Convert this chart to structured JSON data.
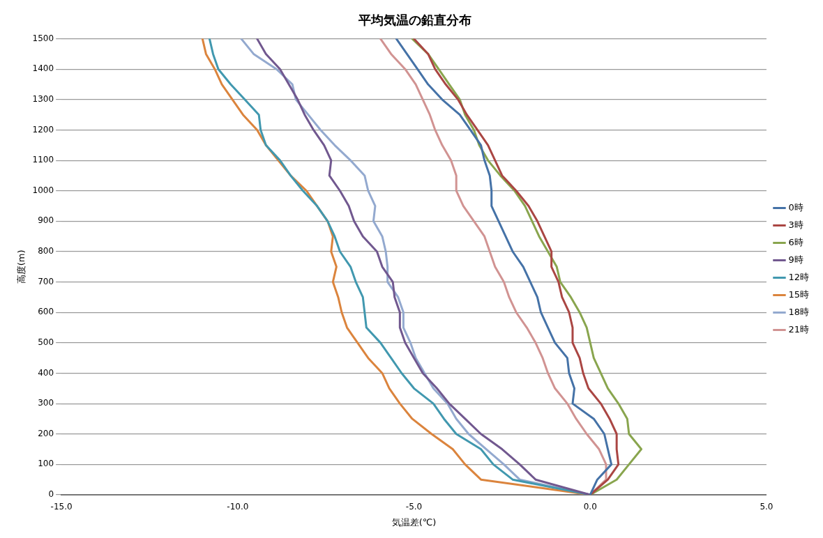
{
  "chart_data": {
    "type": "line",
    "title": "平均気温の鉛直分布",
    "xlabel": "気温差(℃)",
    "ylabel": "高度(m)",
    "xlim": [
      -15,
      5
    ],
    "xticks": [
      {
        "value": -15,
        "label": "-15.0"
      },
      {
        "value": -10,
        "label": "-10.0"
      },
      {
        "value": -5,
        "label": "-5.0"
      },
      {
        "value": 0,
        "label": "0.0"
      },
      {
        "value": 5,
        "label": "5.0"
      }
    ],
    "ylim": [
      0,
      1500
    ],
    "yticks": [
      0,
      100,
      200,
      300,
      400,
      500,
      600,
      700,
      800,
      900,
      1000,
      1100,
      1200,
      1300,
      1400,
      1500
    ],
    "grid": "y",
    "legend": "right",
    "marker": "none",
    "series": [
      {
        "name": "0時",
        "color": "#4572a7",
        "x": [
          0,
          0.2,
          0.6,
          0.5,
          0.4,
          0.1,
          -0.5,
          -0.45,
          -0.6,
          -0.65,
          -1.0,
          -1.2,
          -1.4,
          -1.5,
          -1.7,
          -1.9,
          -2.2,
          -2.4,
          -2.6,
          -2.8,
          -2.8,
          -2.85,
          -3.0,
          -3.1,
          -3.4,
          -3.7,
          -4.2,
          -4.6,
          -4.9,
          -5.2,
          -5.5
        ],
        "values": [
          0,
          50,
          100,
          150,
          200,
          250,
          300,
          350,
          400,
          450,
          500,
          550,
          600,
          650,
          700,
          750,
          800,
          850,
          900,
          950,
          1000,
          1050,
          1100,
          1150,
          1200,
          1250,
          1300,
          1350,
          1400,
          1450,
          1500
        ]
      },
      {
        "name": "3時",
        "color": "#aa4643",
        "x": [
          0,
          0.5,
          0.8,
          0.75,
          0.75,
          0.55,
          0.3,
          -0.05,
          -0.2,
          -0.3,
          -0.5,
          -0.5,
          -0.6,
          -0.8,
          -0.9,
          -1.1,
          -1.1,
          -1.3,
          -1.5,
          -1.75,
          -2.1,
          -2.5,
          -2.7,
          -2.9,
          -3.2,
          -3.5,
          -3.75,
          -4.1,
          -4.4,
          -4.6,
          -5.0
        ],
        "values": [
          0,
          50,
          100,
          150,
          200,
          250,
          300,
          350,
          400,
          450,
          500,
          550,
          600,
          650,
          700,
          750,
          800,
          850,
          900,
          950,
          1000,
          1050,
          1100,
          1150,
          1200,
          1250,
          1300,
          1350,
          1400,
          1450,
          1500
        ]
      },
      {
        "name": "6時",
        "color": "#89a54e",
        "x": [
          0,
          0.75,
          1.1,
          1.45,
          1.1,
          1.05,
          0.8,
          0.5,
          0.3,
          0.1,
          0.0,
          -0.1,
          -0.3,
          -0.55,
          -0.85,
          -0.95,
          -1.2,
          -1.45,
          -1.65,
          -1.85,
          -2.15,
          -2.55,
          -2.9,
          -3.15,
          -3.3,
          -3.55,
          -3.7,
          -4.0,
          -4.3,
          -4.6,
          -5.05
        ],
        "values": [
          0,
          50,
          100,
          150,
          200,
          250,
          300,
          350,
          400,
          450,
          500,
          550,
          600,
          650,
          700,
          750,
          800,
          850,
          900,
          950,
          1000,
          1050,
          1100,
          1150,
          1200,
          1250,
          1300,
          1350,
          1400,
          1450,
          1500
        ]
      },
      {
        "name": "9時",
        "color": "#71588f",
        "x": [
          0,
          -1.55,
          -2.0,
          -2.5,
          -3.1,
          -3.55,
          -4.0,
          -4.35,
          -4.75,
          -5.0,
          -5.25,
          -5.4,
          -5.4,
          -5.55,
          -5.6,
          -5.9,
          -6.05,
          -6.45,
          -6.7,
          -6.85,
          -7.1,
          -7.4,
          -7.35,
          -7.55,
          -7.85,
          -8.1,
          -8.3,
          -8.55,
          -8.8,
          -9.2,
          -9.45
        ],
        "values": [
          0,
          50,
          100,
          150,
          200,
          250,
          300,
          350,
          400,
          450,
          500,
          550,
          600,
          650,
          700,
          750,
          800,
          850,
          900,
          950,
          1000,
          1050,
          1100,
          1150,
          1200,
          1250,
          1300,
          1350,
          1400,
          1450,
          1500
        ]
      },
      {
        "name": "12時",
        "color": "#4198af",
        "x": [
          0,
          -2.2,
          -2.75,
          -3.1,
          -3.8,
          -4.15,
          -4.45,
          -5.0,
          -5.35,
          -5.65,
          -5.95,
          -6.35,
          -6.4,
          -6.45,
          -6.65,
          -6.8,
          -7.1,
          -7.25,
          -7.45,
          -7.75,
          -8.15,
          -8.5,
          -8.8,
          -9.2,
          -9.35,
          -9.4,
          -9.8,
          -10.2,
          -10.55,
          -10.7,
          -10.8
        ],
        "values": [
          0,
          50,
          100,
          150,
          200,
          250,
          300,
          350,
          400,
          450,
          500,
          550,
          600,
          650,
          700,
          750,
          800,
          850,
          900,
          950,
          1000,
          1050,
          1100,
          1150,
          1200,
          1250,
          1300,
          1350,
          1400,
          1450,
          1500
        ]
      },
      {
        "name": "15時",
        "color": "#db843d",
        "x": [
          0,
          -3.1,
          -3.55,
          -3.9,
          -4.5,
          -5.05,
          -5.4,
          -5.7,
          -5.9,
          -6.3,
          -6.6,
          -6.9,
          -7.05,
          -7.15,
          -7.3,
          -7.2,
          -7.35,
          -7.3,
          -7.45,
          -7.75,
          -8.05,
          -8.5,
          -8.85,
          -9.2,
          -9.45,
          -9.85,
          -10.15,
          -10.45,
          -10.65,
          -10.9,
          -11.0
        ],
        "values": [
          0,
          50,
          100,
          150,
          200,
          250,
          300,
          350,
          400,
          450,
          500,
          550,
          600,
          650,
          700,
          750,
          800,
          850,
          900,
          950,
          1000,
          1050,
          1100,
          1150,
          1200,
          1250,
          1300,
          1350,
          1400,
          1450,
          1500
        ]
      },
      {
        "name": "18時",
        "color": "#93a9cf",
        "x": [
          0,
          -2.0,
          -2.45,
          -2.95,
          -3.45,
          -3.8,
          -4.05,
          -4.45,
          -4.7,
          -4.95,
          -5.1,
          -5.3,
          -5.3,
          -5.45,
          -5.75,
          -5.75,
          -5.8,
          -5.9,
          -6.15,
          -6.1,
          -6.3,
          -6.4,
          -6.8,
          -7.25,
          -7.65,
          -8.0,
          -8.35,
          -8.45,
          -8.9,
          -9.55,
          -9.9
        ],
        "values": [
          0,
          50,
          100,
          150,
          200,
          250,
          300,
          350,
          400,
          450,
          500,
          550,
          600,
          650,
          700,
          750,
          800,
          850,
          900,
          950,
          1000,
          1050,
          1100,
          1150,
          1200,
          1250,
          1300,
          1350,
          1400,
          1450,
          1500
        ]
      },
      {
        "name": "21時",
        "color": "#d19392",
        "x": [
          0,
          0.45,
          0.45,
          0.25,
          -0.1,
          -0.4,
          -0.65,
          -1.0,
          -1.2,
          -1.35,
          -1.55,
          -1.8,
          -2.1,
          -2.3,
          -2.45,
          -2.7,
          -2.85,
          -3.0,
          -3.3,
          -3.6,
          -3.8,
          -3.8,
          -3.95,
          -4.2,
          -4.4,
          -4.55,
          -4.75,
          -4.95,
          -5.25,
          -5.65,
          -5.95
        ],
        "values": [
          0,
          50,
          100,
          150,
          200,
          250,
          300,
          350,
          400,
          450,
          500,
          550,
          600,
          650,
          700,
          750,
          800,
          850,
          900,
          950,
          1000,
          1050,
          1100,
          1150,
          1200,
          1250,
          1300,
          1350,
          1400,
          1450,
          1500
        ]
      }
    ]
  }
}
